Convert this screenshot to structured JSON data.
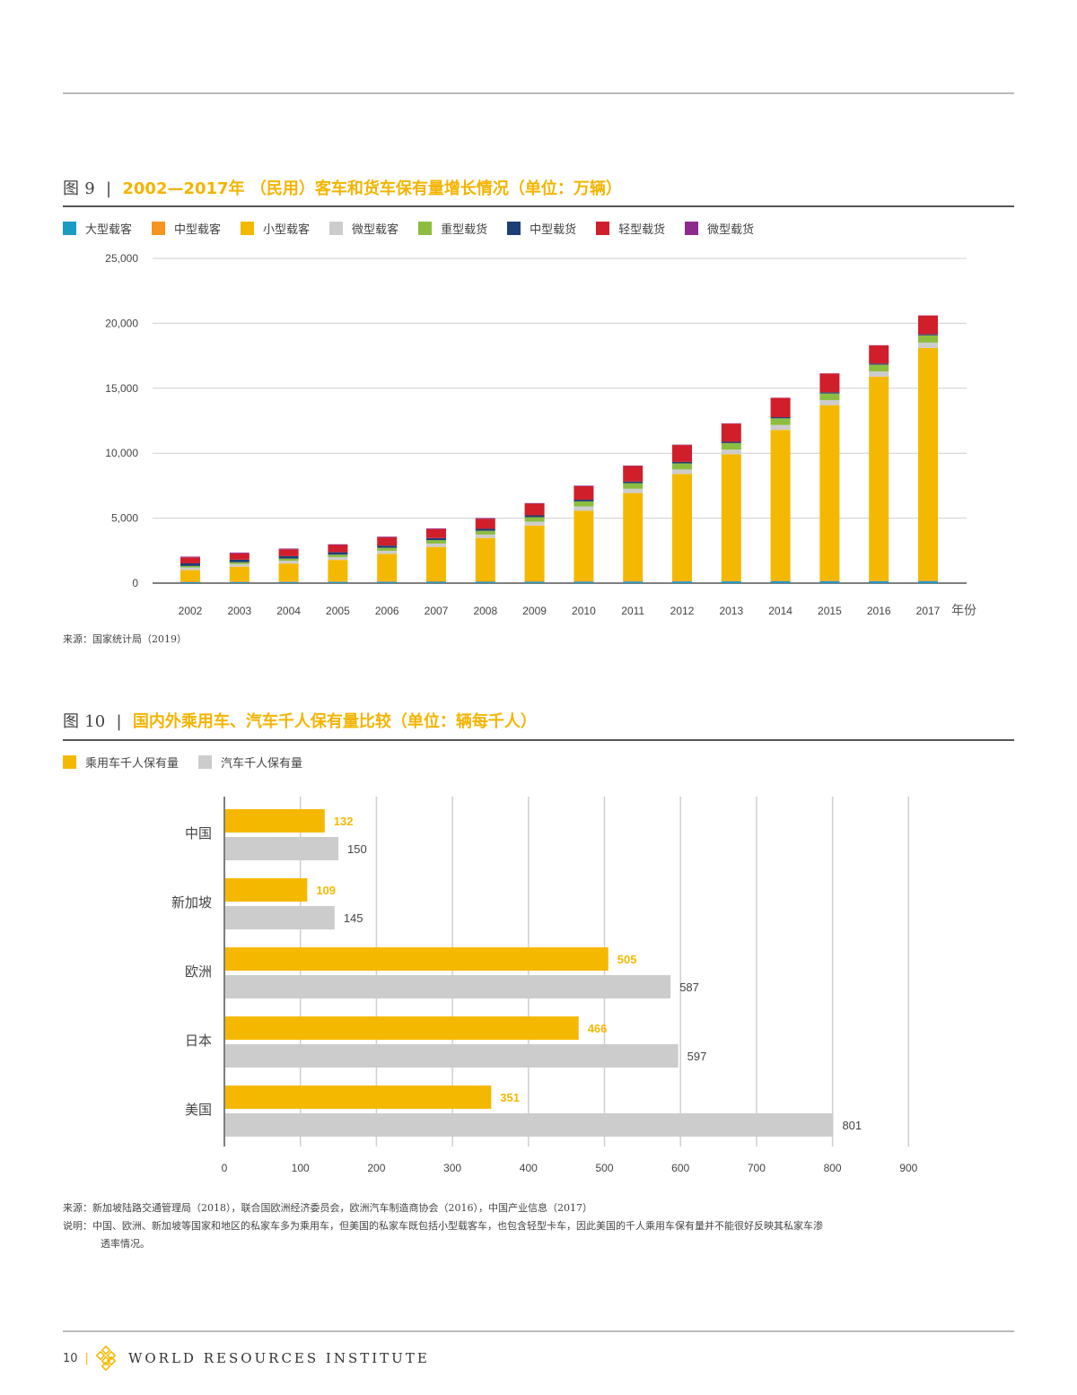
{
  "figure9": {
    "label": "图",
    "number": "9",
    "title": "2002—2017年 （民用）客车和货车保有量增长情况（单位：万辆）",
    "source": "来源：国家统计局（2019）"
  },
  "figure10": {
    "label": "图",
    "number": "10",
    "title": "国内外乘用车、汽车千人保有量比较（单位：辆每千人）",
    "source": "来源：新加坡陆路交通管理局（2018），联合国欧洲经济委员会，欧洲汽车制造商协会（2016），中国产业信息（2017）",
    "note_line1": "说明：中国、欧洲、新加坡等国家和地区的私家车多为乘用车，但美国的私家车既包括小型载客车，也包含轻型卡车，因此美国的千人乘用车保有量并不能很好反映其私家车渗",
    "note_line2": "透率情况。"
  },
  "footer": {
    "page_number": "10",
    "org_name": "WORLD RESOURCES INSTITUTE"
  },
  "chart_data": [
    {
      "type": "bar",
      "stacked": true,
      "title": "2002—2017年 （民用）客车和货车保有量增长情况（单位：万辆）",
      "xlabel": "年份",
      "ylabel": "",
      "ylim": [
        0,
        25000
      ],
      "y_ticks": [
        "0",
        "5,000",
        "10,000",
        "15,000",
        "20,000",
        "25,000"
      ],
      "categories": [
        "2002",
        "2003",
        "2004",
        "2005",
        "2006",
        "2007",
        "2008",
        "2009",
        "2010",
        "2011",
        "2012",
        "2013",
        "2014",
        "2015",
        "2016",
        "2017"
      ],
      "series": [
        {
          "name": "大型载客",
          "color": "#1b9bc4",
          "values": [
            80,
            85,
            90,
            95,
            100,
            105,
            110,
            115,
            120,
            125,
            130,
            135,
            140,
            145,
            150,
            155
          ]
        },
        {
          "name": "中型载客",
          "color": "#f7941d",
          "values": [
            60,
            60,
            60,
            60,
            60,
            60,
            60,
            60,
            60,
            60,
            60,
            55,
            55,
            55,
            50,
            50
          ]
        },
        {
          "name": "小型载客",
          "color": "#f5b800",
          "values": [
            870,
            1120,
            1360,
            1630,
            2090,
            2620,
            3300,
            4260,
            5400,
            6750,
            8210,
            9730,
            11600,
            13500,
            15700,
            17900
          ]
        },
        {
          "name": "微型载客",
          "color": "#cccccc",
          "values": [
            190,
            200,
            210,
            220,
            240,
            260,
            270,
            300,
            320,
            330,
            350,
            360,
            380,
            390,
            400,
            410
          ]
        },
        {
          "name": "重型载货",
          "color": "#8cbd3f",
          "values": [
            120,
            140,
            170,
            190,
            230,
            260,
            290,
            340,
            390,
            430,
            470,
            500,
            510,
            510,
            520,
            560
          ]
        },
        {
          "name": "中型载货",
          "color": "#1c3f77",
          "values": [
            200,
            200,
            190,
            180,
            170,
            160,
            150,
            140,
            130,
            120,
            110,
            100,
            90,
            85,
            80,
            80
          ]
        },
        {
          "name": "轻型载货",
          "color": "#d01f2b",
          "values": [
            460,
            490,
            520,
            560,
            630,
            700,
            780,
            900,
            1050,
            1200,
            1300,
            1400,
            1480,
            1450,
            1400,
            1450
          ]
        },
        {
          "name": "微型载货",
          "color": "#8e2a8e",
          "values": [
            60,
            60,
            60,
            55,
            55,
            50,
            50,
            45,
            40,
            35,
            30,
            25,
            20,
            15,
            15,
            10
          ]
        }
      ]
    },
    {
      "type": "bar",
      "orientation": "horizontal",
      "title": "国内外乘用车、汽车千人保有量比较（单位：辆每千人）",
      "xlabel": "",
      "ylabel": "",
      "xlim": [
        0,
        900
      ],
      "x_ticks": [
        "0",
        "100",
        "200",
        "300",
        "400",
        "500",
        "600",
        "700",
        "800",
        "900"
      ],
      "categories": [
        "中国",
        "新加坡",
        "欧洲",
        "日本",
        "美国"
      ],
      "series": [
        {
          "name": "乘用车千人保有量",
          "color": "#f5b800",
          "values": [
            132,
            109,
            505,
            466,
            351
          ]
        },
        {
          "name": "汽车千人保有量",
          "color": "#cccccc",
          "values": [
            150,
            145,
            587,
            597,
            801
          ]
        }
      ]
    }
  ]
}
